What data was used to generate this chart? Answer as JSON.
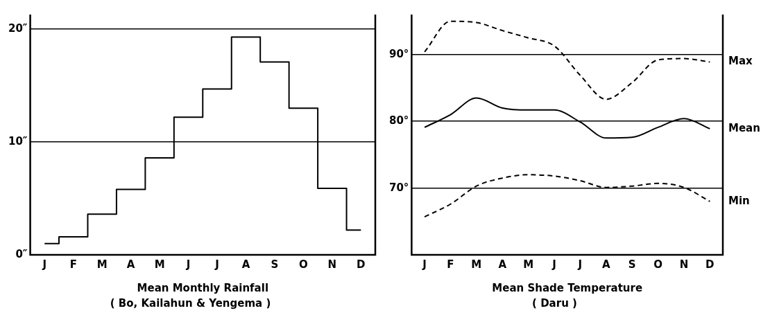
{
  "chart_data": [
    {
      "type": "step",
      "xlabel": "Mean Monthly Rainfall",
      "subtitle": "( Bo, Kailahun & Yengema )",
      "categories": [
        "J",
        "F",
        "M",
        "A",
        "M",
        "J",
        "J",
        "A",
        "S",
        "O",
        "N",
        "D"
      ],
      "values": [
        1.0,
        1.6,
        3.6,
        5.8,
        8.6,
        12.2,
        14.7,
        19.3,
        17.1,
        13.0,
        5.9,
        2.2
      ],
      "color": "#000000",
      "line_style": "solid",
      "marker": "none",
      "ylim": [
        0,
        21.3
      ],
      "yticks": [
        {
          "value": 0,
          "label": "0″"
        },
        {
          "value": 10,
          "label": "10″"
        },
        {
          "value": 20,
          "label": "20″"
        }
      ],
      "grid": "y",
      "legend": false
    },
    {
      "type": "line",
      "xlabel": "Mean Shade Temperature",
      "subtitle": "( Daru )",
      "categories": [
        "J",
        "F",
        "M",
        "A",
        "M",
        "J",
        "J",
        "A",
        "S",
        "O",
        "N",
        "D"
      ],
      "series": [
        {
          "name": "Max",
          "color": "#000000",
          "line_style": "dashed",
          "values": [
            90.4,
            95.0,
            94.8,
            93.6,
            92.5,
            91.3,
            86.9,
            83.3,
            85.8,
            89.2,
            89.4,
            88.9
          ]
        },
        {
          "name": "Mean",
          "color": "#000000",
          "line_style": "solid",
          "values": [
            79.1,
            81.0,
            83.5,
            82.0,
            81.7,
            81.7,
            79.9,
            77.5,
            77.6,
            79.1,
            80.4,
            78.9
          ]
        },
        {
          "name": "Min",
          "color": "#000000",
          "line_style": "dashed",
          "values": [
            65.7,
            67.6,
            70.3,
            71.5,
            72.0,
            71.8,
            71.1,
            70.1,
            70.3,
            70.7,
            70.1,
            68.0
          ]
        }
      ],
      "marker": "none",
      "ylim": [
        60,
        96
      ],
      "yticks": [
        {
          "value": 70,
          "label": "70°"
        },
        {
          "value": 80,
          "label": "80°"
        },
        {
          "value": 90,
          "label": "90°"
        }
      ],
      "grid": "y",
      "legend": false
    }
  ]
}
